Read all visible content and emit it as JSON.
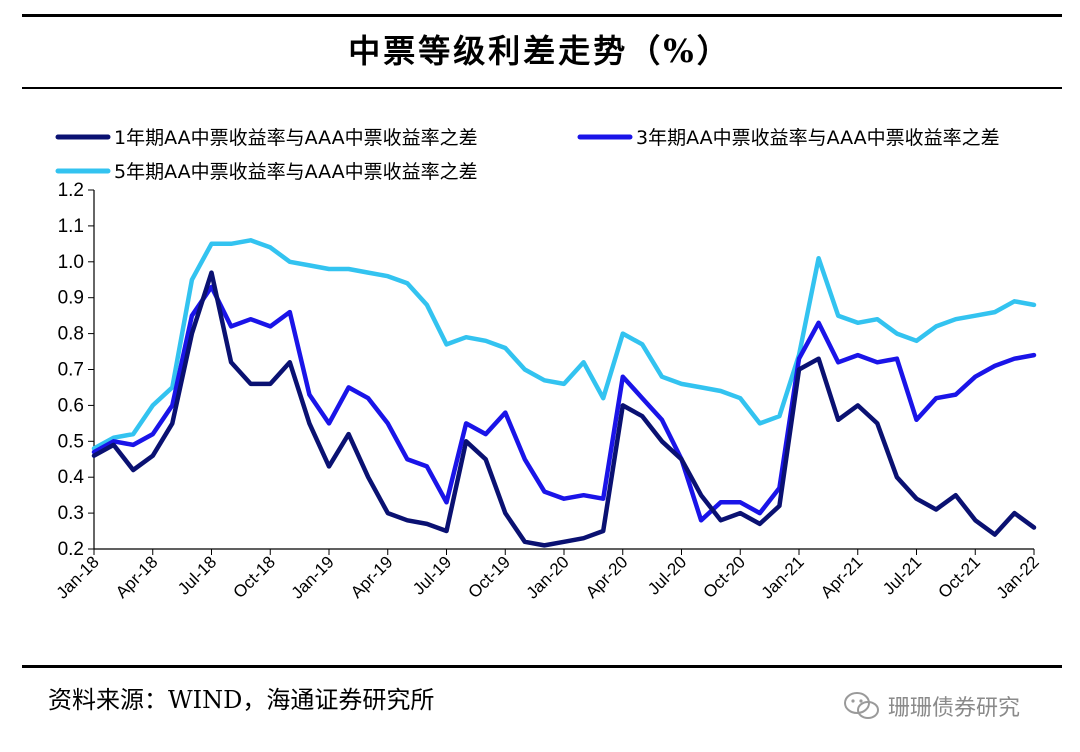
{
  "title": "中票等级利差走势（%）",
  "source": "资料来源：WIND，海通证券研究所",
  "watermark": "珊珊债券研究",
  "watermark_icon": "wechat-icon",
  "chart_data": {
    "type": "line",
    "title": "中票等级利差走势（%）",
    "xlabel": "",
    "ylabel": "",
    "ylim": [
      0.2,
      1.2
    ],
    "yticks": [
      "0.2",
      "0.3",
      "0.4",
      "0.5",
      "0.6",
      "0.7",
      "0.8",
      "0.9",
      "1.0",
      "1.1",
      "1.2"
    ],
    "xticks": [
      "Jan-18",
      "Apr-18",
      "Jul-18",
      "Oct-18",
      "Jan-19",
      "Apr-19",
      "Jul-19",
      "Oct-19",
      "Jan-20",
      "Apr-20",
      "Jul-20",
      "Oct-20",
      "Jan-21",
      "Apr-21",
      "Jul-21",
      "Oct-21",
      "Jan-22"
    ],
    "x": [
      "2018-01",
      "2018-02",
      "2018-03",
      "2018-04",
      "2018-05",
      "2018-06",
      "2018-07",
      "2018-08",
      "2018-09",
      "2018-10",
      "2018-11",
      "2018-12",
      "2019-01",
      "2019-02",
      "2019-03",
      "2019-04",
      "2019-05",
      "2019-06",
      "2019-07",
      "2019-08",
      "2019-09",
      "2019-10",
      "2019-11",
      "2019-12",
      "2020-01",
      "2020-02",
      "2020-03",
      "2020-04",
      "2020-05",
      "2020-06",
      "2020-07",
      "2020-08",
      "2020-09",
      "2020-10",
      "2020-11",
      "2020-12",
      "2021-01",
      "2021-02",
      "2021-03",
      "2021-04",
      "2021-05",
      "2021-06",
      "2021-07",
      "2021-08",
      "2021-09",
      "2021-10",
      "2021-11",
      "2021-12",
      "2022-01"
    ],
    "series": [
      {
        "name": "1年期AA中票收益率与AAA中票收益率之差",
        "color": "#0a1172",
        "values": [
          0.46,
          0.49,
          0.42,
          0.46,
          0.55,
          0.8,
          0.97,
          0.72,
          0.66,
          0.66,
          0.72,
          0.55,
          0.43,
          0.52,
          0.4,
          0.3,
          0.28,
          0.27,
          0.25,
          0.5,
          0.45,
          0.3,
          0.22,
          0.21,
          0.22,
          0.23,
          0.25,
          0.6,
          0.57,
          0.5,
          0.45,
          0.35,
          0.28,
          0.3,
          0.27,
          0.32,
          0.7,
          0.73,
          0.56,
          0.6,
          0.55,
          0.4,
          0.34,
          0.31,
          0.35,
          0.28,
          0.24,
          0.3,
          0.26
        ]
      },
      {
        "name": "3年期AA中票收益率与AAA中票收益率之差",
        "color": "#1a14e8",
        "values": [
          0.47,
          0.5,
          0.49,
          0.52,
          0.6,
          0.85,
          0.93,
          0.82,
          0.84,
          0.82,
          0.86,
          0.63,
          0.55,
          0.65,
          0.62,
          0.55,
          0.45,
          0.43,
          0.33,
          0.55,
          0.52,
          0.58,
          0.45,
          0.36,
          0.34,
          0.35,
          0.34,
          0.68,
          0.62,
          0.56,
          0.45,
          0.28,
          0.33,
          0.33,
          0.3,
          0.37,
          0.73,
          0.83,
          0.72,
          0.74,
          0.72,
          0.73,
          0.56,
          0.62,
          0.63,
          0.68,
          0.71,
          0.73,
          0.74
        ]
      },
      {
        "name": "5年期AA中票收益率与AAA中票收益率之差",
        "color": "#33c3f0",
        "values": [
          0.48,
          0.51,
          0.52,
          0.6,
          0.65,
          0.95,
          1.05,
          1.05,
          1.06,
          1.04,
          1.0,
          0.99,
          0.98,
          0.98,
          0.97,
          0.96,
          0.94,
          0.88,
          0.77,
          0.79,
          0.78,
          0.76,
          0.7,
          0.67,
          0.66,
          0.72,
          0.62,
          0.8,
          0.77,
          0.68,
          0.66,
          0.65,
          0.64,
          0.62,
          0.55,
          0.57,
          0.74,
          1.01,
          0.85,
          0.83,
          0.84,
          0.8,
          0.78,
          0.82,
          0.84,
          0.85,
          0.86,
          0.89,
          0.88
        ]
      }
    ]
  }
}
